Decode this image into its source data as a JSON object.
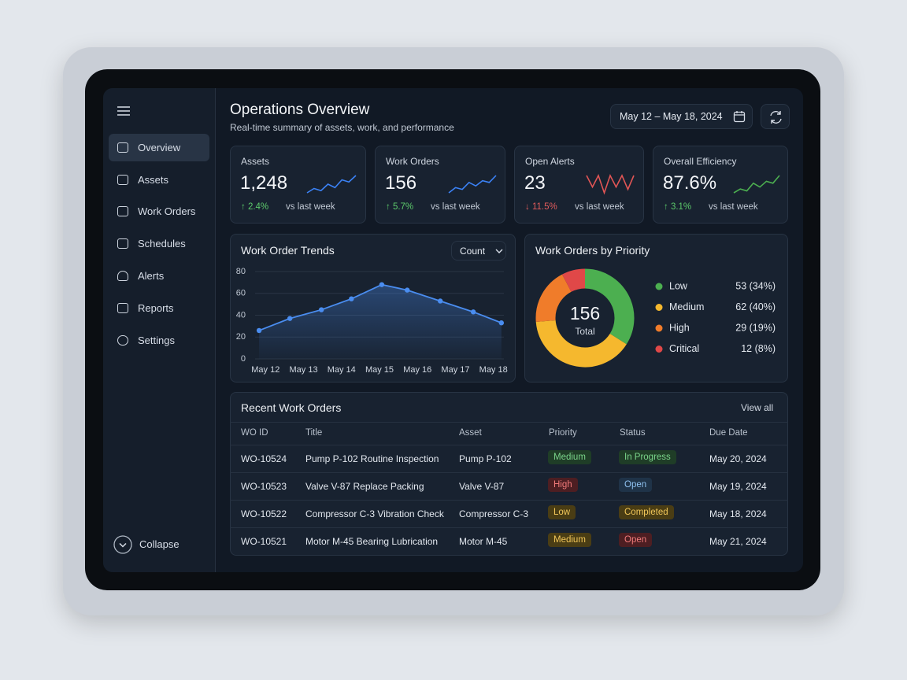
{
  "sidebar": {
    "items": [
      "Overview",
      "Assets",
      "Work Orders",
      "Schedules",
      "Alerts",
      "Reports",
      "Settings"
    ],
    "collapse": "Collapse"
  },
  "header": {
    "title": "Operations Overview",
    "subtitle": "Real-time summary of assets, work, and performance",
    "date_range": "May 12 – May 18, 2024"
  },
  "kpis": [
    {
      "label": "Assets",
      "value": "1,248",
      "change": "↑ 2.4%",
      "note": "vs last week",
      "color": "#3b82f6",
      "change_color": "#5cc96b",
      "spark": [
        3,
        4,
        3.5,
        5,
        4.2,
        6,
        5.5,
        7
      ]
    },
    {
      "label": "Work Orders",
      "value": "156",
      "change": "↑ 5.7%",
      "note": "vs last week",
      "color": "#3b82f6",
      "change_color": "#5cc96b",
      "spark": [
        2,
        3.5,
        3,
        5,
        4,
        5.5,
        5,
        7
      ]
    },
    {
      "label": "Open Alerts",
      "value": "23",
      "change": "↓ 11.5%",
      "note": "vs last week",
      "color": "#e05555",
      "change_color": "#e25c5c",
      "spark": [
        5,
        4,
        5,
        3.5,
        5,
        4,
        5,
        3.8,
        5
      ]
    },
    {
      "label": "Overall Efficiency",
      "value": "87.6%",
      "change": "↑ 3.1%",
      "note": "vs last week",
      "color": "#4caf50",
      "change_color": "#5cc96b",
      "spark": [
        2,
        3,
        2.5,
        4.5,
        3.5,
        5,
        4.5,
        6.5
      ]
    }
  ],
  "chart_data": [
    {
      "type": "line",
      "title": "Work Order Trends",
      "dropdown": "Count",
      "color": "#4a8df0",
      "x": [
        11.83,
        12.64,
        13.47,
        14.26,
        15.06,
        15.73,
        16.6,
        17.47,
        18.21
      ],
      "values": [
        26,
        37,
        45,
        55,
        68,
        63,
        53,
        43,
        33
      ],
      "xlim": [
        11.6,
        18.4
      ],
      "xticks": [
        {
          "value": 12,
          "label": "May 12"
        },
        {
          "value": 13,
          "label": "May 13"
        },
        {
          "value": 14,
          "label": "May 14"
        },
        {
          "value": 15,
          "label": "May 15"
        },
        {
          "value": 16,
          "label": "May 16"
        },
        {
          "value": 17,
          "label": "May 17"
        },
        {
          "value": 18,
          "label": "May 18"
        }
      ],
      "ylim": [
        0,
        80
      ],
      "yticks": [
        0,
        20,
        40,
        60,
        80
      ],
      "grid": true
    },
    {
      "type": "pie",
      "title": "Work Orders by Priority",
      "total": "156",
      "total_label": "Total",
      "categories": [
        "Low",
        "Medium",
        "High",
        "Critical"
      ],
      "values": [
        53,
        62,
        29,
        12
      ],
      "value_labels": [
        "53 (34%)",
        "62 (40%)",
        "29 (19%)",
        "12 (8%)"
      ],
      "colors": [
        "#4caf50",
        "#f5b82e",
        "#f07c2a",
        "#e04848"
      ]
    }
  ],
  "table": {
    "title": "Recent Work Orders",
    "action": "View all",
    "columns": [
      "WO ID",
      "Title",
      "Asset",
      "Priority",
      "Status",
      "Due Date"
    ],
    "rows": [
      [
        "WO-10524",
        "Pump P-102 Routine Inspection",
        "Pump P-102",
        "Medium",
        "In Progress",
        "May 20, 2024"
      ],
      [
        "WO-10523",
        "Valve V-87 Replace Packing",
        "Valve V-87",
        "High",
        "Open",
        "May 19, 2024"
      ],
      [
        "WO-10522",
        "Compressor C-3 Vibration Check",
        "Compressor C-3",
        "Low",
        "Completed",
        "May 18, 2024"
      ],
      [
        "WO-10521",
        "Motor M-45 Bearing Lubrication",
        "Motor M-45",
        "Medium",
        "Open",
        "May 21, 2024"
      ]
    ]
  }
}
